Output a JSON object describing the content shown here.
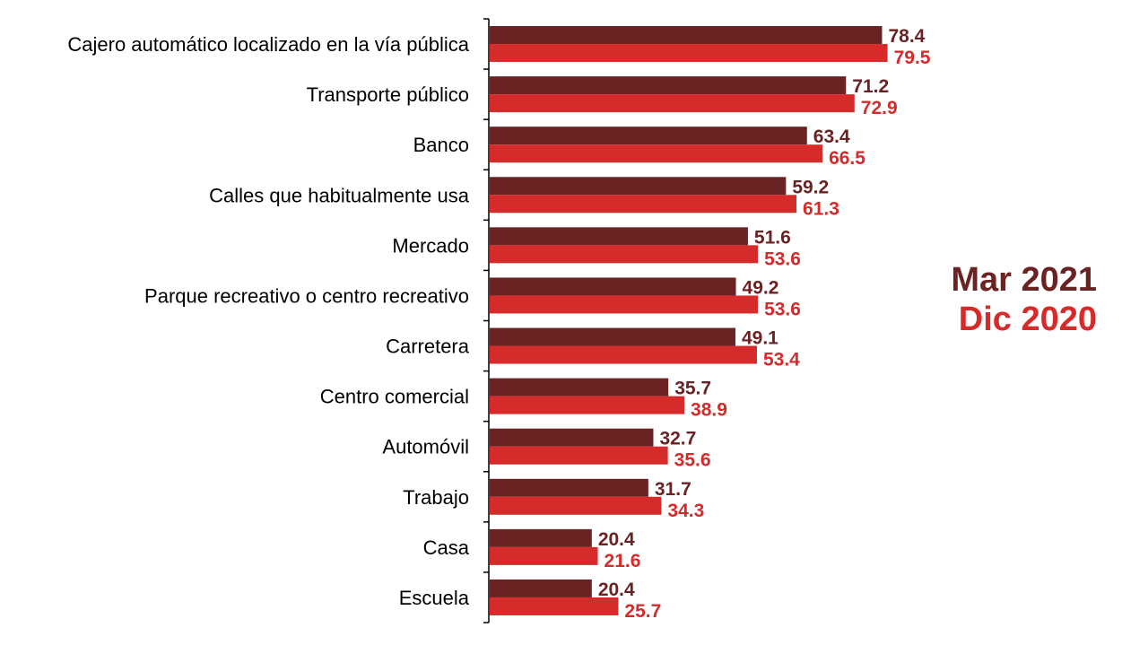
{
  "chart_data": {
    "type": "bar",
    "orientation": "horizontal",
    "categories": [
      "Cajero automático localizado en la vía pública",
      "Transporte público",
      "Banco",
      "Calles que habitualmente usa",
      "Mercado",
      "Parque recreativo o centro recreativo",
      "Carretera",
      "Centro comercial",
      "Automóvil",
      "Trabajo",
      "Casa",
      "Escuela"
    ],
    "series": [
      {
        "name": "Mar 2021",
        "color": "#6B2222",
        "values": [
          78.4,
          71.2,
          63.4,
          59.2,
          51.6,
          49.2,
          49.1,
          35.7,
          32.7,
          31.7,
          20.4,
          20.4
        ]
      },
      {
        "name": "Dic 2020",
        "color": "#D52B2B",
        "values": [
          79.5,
          72.9,
          66.5,
          61.3,
          53.6,
          53.6,
          53.4,
          38.9,
          35.6,
          34.3,
          21.6,
          25.7
        ]
      }
    ],
    "xlim": [
      0,
      100
    ],
    "grid": false,
    "legend_position": "right",
    "title": "",
    "xlabel": "",
    "ylabel": ""
  }
}
